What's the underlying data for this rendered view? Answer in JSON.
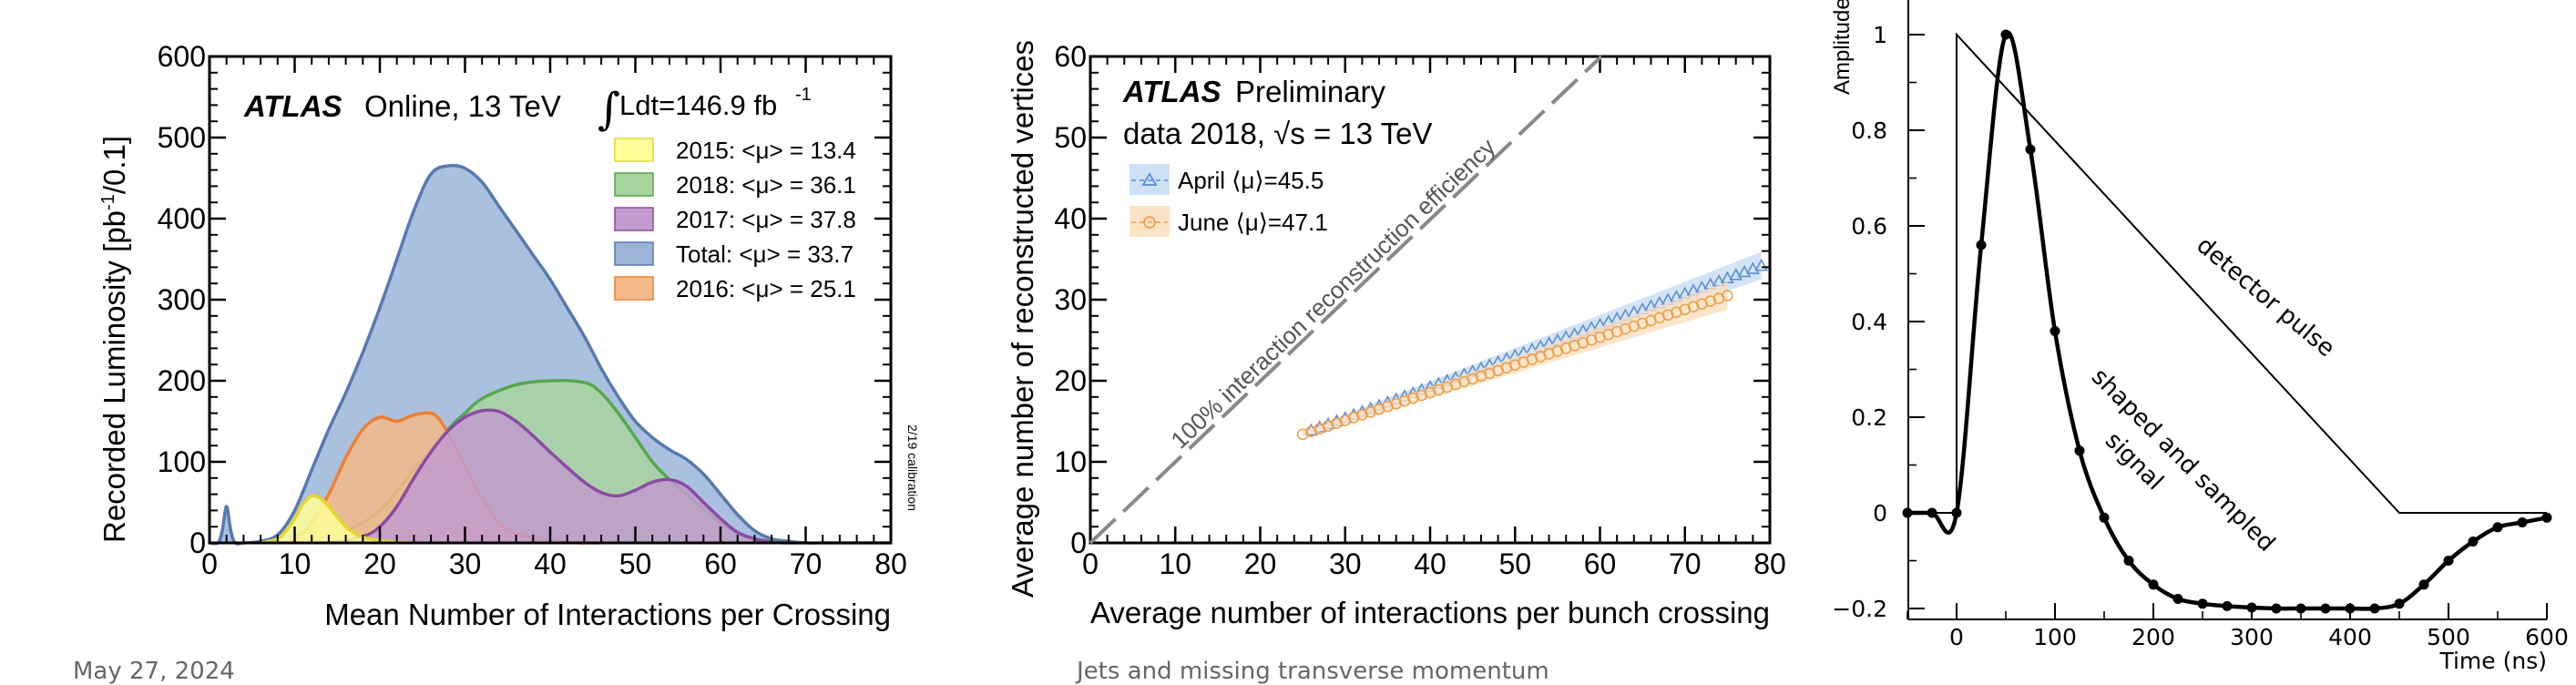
{
  "footer": {
    "date": "May 27, 2024",
    "section": "Jets and missing transverse momentum"
  },
  "chart_data": [
    {
      "type": "area",
      "header": {
        "experiment": "ATLAS",
        "label": "Online, 13 TeV",
        "lumi_int": "∫",
        "lumi_text": "Ldt=146.9 fb",
        "lumi_sup": "-1"
      },
      "xlabel": "Mean Number of Interactions per Crossing",
      "ylabel_pre": "Recorded Luminosity [pb",
      "ylabel_sup": "-1",
      "ylabel_post": "/0.1]",
      "xlim": [
        0,
        80
      ],
      "ylim": [
        0,
        600
      ],
      "xticks": [
        "0",
        "10",
        "20",
        "30",
        "40",
        "50",
        "60",
        "70",
        "80"
      ],
      "yticks": [
        "0",
        "100",
        "200",
        "300",
        "400",
        "500",
        "600"
      ],
      "side_note": "2/19 calibration",
      "legend_position": "top-right",
      "series": [
        {
          "name": "Total: <μ> = 33.7",
          "fill": "#9bb5d9",
          "stroke": "#5679b0",
          "x": [
            0,
            1,
            1.5,
            2,
            2.5,
            3,
            4,
            6,
            8,
            10,
            12,
            14,
            16,
            18,
            20,
            22,
            24,
            26,
            28,
            30,
            32,
            34,
            36,
            38,
            40,
            42,
            44,
            46,
            48,
            50,
            52,
            54,
            56,
            58,
            60,
            62,
            64,
            66,
            68,
            70,
            72,
            74,
            80
          ],
          "y": [
            0,
            0,
            15,
            45,
            15,
            0,
            0,
            2,
            10,
            40,
            90,
            140,
            185,
            235,
            290,
            350,
            410,
            455,
            465,
            462,
            445,
            415,
            385,
            355,
            325,
            290,
            255,
            215,
            180,
            150,
            130,
            115,
            103,
            85,
            60,
            35,
            15,
            5,
            2,
            0,
            0,
            0,
            0
          ]
        },
        {
          "name": "2018: <μ> = 36.1",
          "fill": "#a8d4a0",
          "stroke": "#55a84a",
          "x": [
            8,
            12,
            16,
            20,
            24,
            28,
            30,
            32,
            36,
            40,
            44,
            46,
            48,
            50,
            52,
            54,
            56,
            58,
            60,
            62,
            64,
            66,
            68,
            70
          ],
          "y": [
            0,
            5,
            15,
            40,
            90,
            140,
            160,
            178,
            195,
            200,
            198,
            185,
            160,
            130,
            100,
            78,
            60,
            42,
            25,
            12,
            5,
            2,
            0,
            0
          ]
        },
        {
          "name": "2016: <μ> = 25.1",
          "fill": "#f5b98a",
          "stroke": "#f07f2e",
          "x": [
            8,
            10,
            12,
            14,
            16,
            18,
            20,
            22,
            24,
            26,
            27,
            28,
            30,
            32,
            34,
            36,
            38,
            40,
            42,
            44,
            46
          ],
          "y": [
            0,
            5,
            25,
            60,
            105,
            140,
            155,
            150,
            158,
            160,
            152,
            135,
            95,
            55,
            25,
            12,
            6,
            3,
            1,
            0,
            0
          ]
        },
        {
          "name": "2017: <μ> = 37.8",
          "fill": "#c29bcf",
          "stroke": "#8b4aa5",
          "x": [
            14,
            18,
            20,
            22,
            24,
            26,
            28,
            30,
            32,
            34,
            36,
            38,
            40,
            42,
            44,
            46,
            48,
            50,
            52,
            54,
            56,
            58,
            60,
            62,
            64,
            66,
            68
          ],
          "y": [
            0,
            8,
            20,
            45,
            80,
            112,
            138,
            155,
            163,
            162,
            150,
            132,
            112,
            93,
            75,
            62,
            58,
            65,
            75,
            78,
            70,
            50,
            30,
            13,
            5,
            1,
            0
          ]
        },
        {
          "name": "2015: <μ> = 13.4",
          "fill": "#ffff99",
          "stroke": "#e6d82a",
          "x": [
            6,
            8,
            9,
            10,
            11,
            12,
            13,
            14,
            15,
            16,
            17,
            18,
            20,
            22,
            24
          ],
          "y": [
            0,
            5,
            15,
            30,
            48,
            58,
            55,
            45,
            32,
            20,
            12,
            7,
            3,
            1,
            0
          ]
        }
      ]
    },
    {
      "type": "scatter",
      "header": {
        "experiment": "ATLAS",
        "label": "Preliminary",
        "data_label": "data 2018, ",
        "sqrt_s": "√s",
        "energy": " = 13 TeV"
      },
      "diag_label": "100% interaction reconstruction efficiency",
      "xlabel": "Average number of interactions per bunch crossing",
      "ylabel": "Average number of reconstructed vertices",
      "xlim": [
        0,
        80
      ],
      "ylim": [
        0,
        60
      ],
      "xticks": [
        "0",
        "10",
        "20",
        "30",
        "40",
        "50",
        "60",
        "70",
        "80"
      ],
      "yticks": [
        "0",
        "10",
        "20",
        "30",
        "40",
        "50",
        "60"
      ],
      "legend_position": "top-left",
      "series": [
        {
          "name": "April ⟨μ⟩=45.5",
          "marker": "triangle",
          "color": "#5b8fd6",
          "band": "#c9ddf5",
          "x_start": 26,
          "x_end": 79,
          "y_start": 13.9,
          "y_end": 34.2
        },
        {
          "name": "June ⟨μ⟩=47.1",
          "marker": "circle",
          "color": "#f0a04a",
          "band": "#fbe0bf",
          "x_start": 25,
          "x_end": 75,
          "y_start": 13.4,
          "y_end": 30.5
        }
      ]
    },
    {
      "type": "line",
      "xlabel": "Time (ns)",
      "ylabel": "Amplitude",
      "xlim": [
        -50,
        600
      ],
      "ylim": [
        -0.22,
        1.07
      ],
      "xticks": [
        "0",
        "100",
        "200",
        "300",
        "400",
        "500",
        "600"
      ],
      "yticks": [
        "−0.2",
        "0",
        "0.2",
        "0.4",
        "0.6",
        "0.8",
        "1"
      ],
      "annotations": [
        "detector pulse",
        "shaped and sampled",
        "signal"
      ],
      "series": [
        {
          "name": "detector pulse",
          "x": [
            -50,
            0,
            0,
            450,
            600
          ],
          "y": [
            0,
            0,
            1,
            0,
            0
          ]
        },
        {
          "name": "shaped and sampled signal",
          "x": [
            -50,
            -25,
            0,
            25,
            50,
            75,
            100,
            125,
            150,
            175,
            200,
            225,
            250,
            275,
            300,
            325,
            350,
            375,
            400,
            425,
            450,
            475,
            500,
            525,
            550,
            575,
            600
          ],
          "y": [
            0,
            0,
            0,
            0.56,
            1.0,
            0.76,
            0.38,
            0.13,
            -0.01,
            -0.1,
            -0.15,
            -0.18,
            -0.19,
            -0.195,
            -0.198,
            -0.2,
            -0.2,
            -0.2,
            -0.2,
            -0.2,
            -0.19,
            -0.15,
            -0.1,
            -0.06,
            -0.03,
            -0.02,
            -0.01
          ]
        }
      ]
    }
  ]
}
